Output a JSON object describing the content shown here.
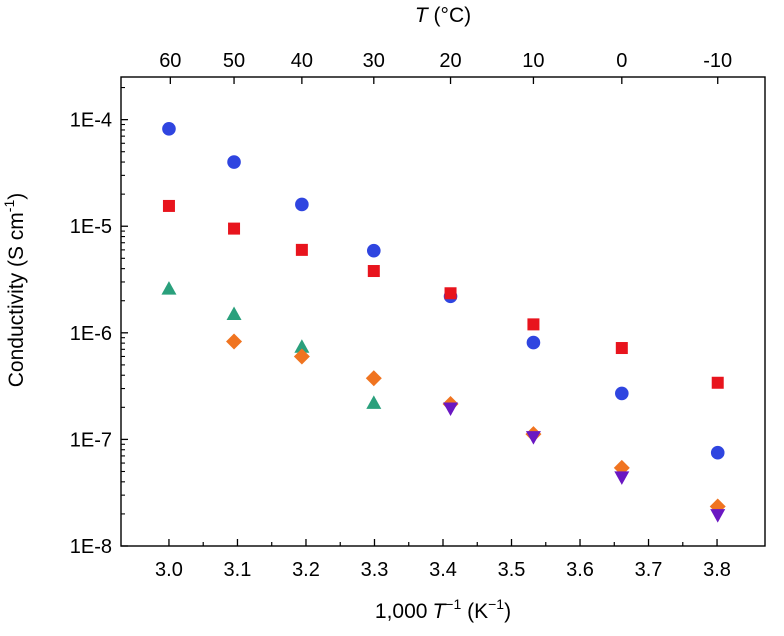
{
  "chart_data": {
    "type": "scatter",
    "title": "",
    "xlabel": {
      "prefix": "1,000",
      "var": "T",
      "sup": "−1",
      "unit_open": " (K",
      "unit_sup": "−1",
      "unit_close": ")"
    },
    "ylabel": {
      "text": "Conductivity (S cm",
      "sup": "-1",
      "close": ")"
    },
    "top_xlabel": {
      "var": "T",
      "unit": " (°C)"
    },
    "xlim": [
      2.93,
      3.87
    ],
    "ylim_log10": [
      -8,
      -3.6
    ],
    "yscale": "log",
    "x_ticks": [
      3.0,
      3.1,
      3.2,
      3.3,
      3.4,
      3.5,
      3.6,
      3.7,
      3.8
    ],
    "x_tick_labels": [
      "3.0",
      "3.1",
      "3.2",
      "3.3",
      "3.4",
      "3.5",
      "3.6",
      "3.7",
      "3.8"
    ],
    "y_ticks_log10": [
      -8,
      -7,
      -6,
      -5,
      -4
    ],
    "y_tick_labels": [
      "1E-8",
      "1E-7",
      "1E-6",
      "1E-5",
      "1E-4"
    ],
    "top_ticks": [
      {
        "label": "60",
        "x": 3.002
      },
      {
        "label": "50",
        "x": 3.095
      },
      {
        "label": "40",
        "x": 3.194
      },
      {
        "label": "30",
        "x": 3.299
      },
      {
        "label": "20",
        "x": 3.411
      },
      {
        "label": "10",
        "x": 3.532
      },
      {
        "label": "0",
        "x": 3.661
      },
      {
        "label": "-10",
        "x": 3.801
      }
    ],
    "series": [
      {
        "name": "circle series",
        "marker": "circle",
        "color": "#2f45e0",
        "points": [
          [
            3.0,
            8.2e-05
          ],
          [
            3.095,
            4e-05
          ],
          [
            3.194,
            1.6e-05
          ],
          [
            3.299,
            5.9e-06
          ],
          [
            3.411,
            2.2e-06
          ],
          [
            3.532,
            8.1e-07
          ],
          [
            3.661,
            2.7e-07
          ],
          [
            3.801,
            7.5e-08
          ]
        ]
      },
      {
        "name": "square series",
        "marker": "square",
        "color": "#e8141d",
        "points": [
          [
            3.0,
            1.55e-05
          ],
          [
            3.095,
            9.5e-06
          ],
          [
            3.194,
            6e-06
          ],
          [
            3.299,
            3.8e-06
          ],
          [
            3.411,
            2.35e-06
          ],
          [
            3.532,
            1.2e-06
          ],
          [
            3.661,
            7.2e-07
          ],
          [
            3.801,
            3.4e-07
          ]
        ]
      },
      {
        "name": "triangle series",
        "marker": "triangle-up",
        "color": "#2aa07c",
        "points": [
          [
            3.0,
            2.6e-06
          ],
          [
            3.095,
            1.5e-06
          ],
          [
            3.194,
            7.4e-07
          ],
          [
            3.299,
            2.2e-07
          ]
        ]
      },
      {
        "name": "diamond series",
        "marker": "diamond",
        "color": "#f07420",
        "points": [
          [
            3.095,
            8.3e-07
          ],
          [
            3.194,
            6e-07
          ],
          [
            3.299,
            3.75e-07
          ],
          [
            3.411,
            2.15e-07
          ],
          [
            3.532,
            1.12e-07
          ],
          [
            3.661,
            5.4e-08
          ],
          [
            3.801,
            2.35e-08
          ]
        ]
      },
      {
        "name": "inverted triangle series",
        "marker": "triangle-down",
        "color": "#6a17c2",
        "points": [
          [
            3.411,
            1.95e-07
          ],
          [
            3.532,
            1.05e-07
          ],
          [
            3.661,
            4.4e-08
          ],
          [
            3.801,
            1.95e-08
          ]
        ]
      }
    ]
  }
}
